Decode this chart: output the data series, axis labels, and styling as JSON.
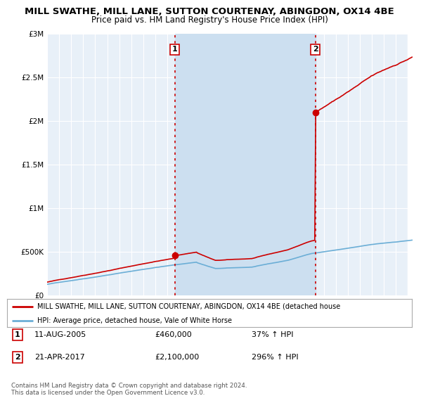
{
  "title": "MILL SWATHE, MILL LANE, SUTTON COURTENAY, ABINGDON, OX14 4BE",
  "subtitle": "Price paid vs. HM Land Registry's House Price Index (HPI)",
  "title_fontsize": 9.5,
  "subtitle_fontsize": 8.5,
  "ylabel_ticks": [
    "£0",
    "£500K",
    "£1M",
    "£1.5M",
    "£2M",
    "£2.5M",
    "£3M"
  ],
  "ylim": [
    0,
    3000000
  ],
  "xlim_start": 1995.0,
  "xlim_end": 2025.5,
  "background_color": "#ffffff",
  "plot_bg_color": "#e8f0f8",
  "grid_color": "#ffffff",
  "hpi_line_color": "#6baed6",
  "property_line_color": "#cc0000",
  "shade_color": "#ccdff0",
  "hatch_color": "#cccccc",
  "vline_color": "#cc0000",
  "vline1_x": 2005.62,
  "vline2_x": 2017.3,
  "marker1_x": 2005.62,
  "marker1_y": 460000,
  "marker2_x": 2017.3,
  "marker2_y": 2100000,
  "legend_line1": "MILL SWATHE, MILL LANE, SUTTON COURTENAY, ABINGDON, OX14 4BE (detached house",
  "legend_line2": "HPI: Average price, detached house, Vale of White Horse",
  "table_row1": [
    "1",
    "11-AUG-2005",
    "£460,000",
    "37% ↑ HPI"
  ],
  "table_row2": [
    "2",
    "21-APR-2017",
    "£2,100,000",
    "296% ↑ HPI"
  ],
  "footnote": "Contains HM Land Registry data © Crown copyright and database right 2024.\nThis data is licensed under the Open Government Licence v3.0."
}
